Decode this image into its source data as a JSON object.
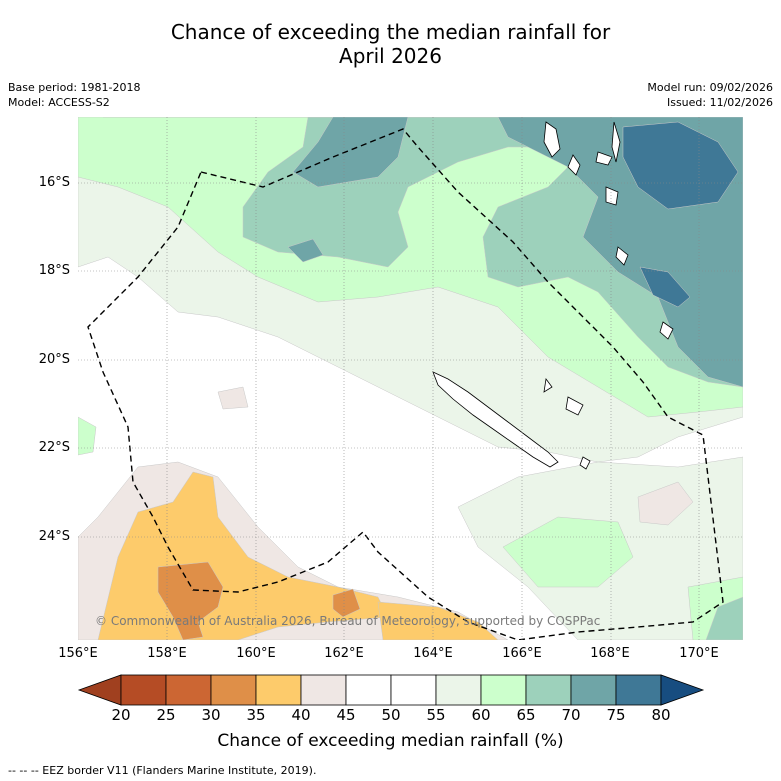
{
  "title_line1": "Chance of exceeding the median rainfall for",
  "title_line2": "April 2026",
  "meta": {
    "base_period": "Base period: 1981-2018",
    "model": "Model: ACCESS-S2",
    "model_run": "Model run: 09/02/2026",
    "issued": "Issued: 11/02/2026"
  },
  "axes": {
    "lat_labels": [
      "16°S",
      "18°S",
      "20°S",
      "22°S",
      "24°S"
    ],
    "lon_labels": [
      "156°E",
      "158°E",
      "160°E",
      "162°E",
      "164°E",
      "166°E",
      "168°E",
      "170°E"
    ]
  },
  "copyright": "© Commonwealth of Australia 2026, Bureau of Meteorology, supported by COSPPac",
  "colorbar": {
    "ticks": [
      "20",
      "25",
      "30",
      "35",
      "40",
      "45",
      "50",
      "55",
      "60",
      "65",
      "70",
      "75",
      "80"
    ],
    "colors": [
      "#a0401f",
      "#b54c25",
      "#cc6633",
      "#df8f48",
      "#fdcb6b",
      "#efe7e4",
      "#ffffff",
      "#ffffff",
      "#ebf5e9",
      "#ccffcc",
      "#9dd1bb",
      "#6fa5a7",
      "#3f7896",
      "#174d80"
    ],
    "label": "Chance of exceeding median rainfall (%)"
  },
  "footnote": "--  --  -- EEZ border V11 (Flanders Marine Institute, 2019)."
}
